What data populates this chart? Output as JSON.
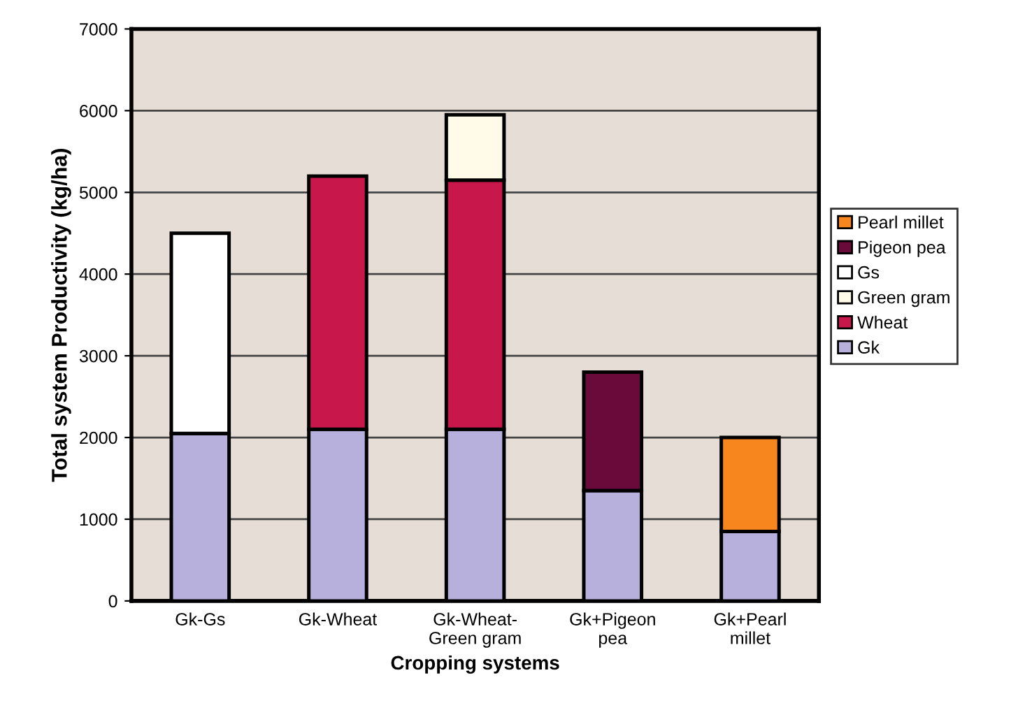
{
  "chart_data": {
    "type": "bar",
    "stacked": true,
    "xlabel": "Cropping systems",
    "ylabel": "Total system Productivity (kg/ha)",
    "categories": [
      "Gk-Gs",
      "Gk-Wheat",
      "Gk-Wheat-\nGreen gram",
      "Gk+Pigeon\npea",
      "Gk+Pearl\nmillet"
    ],
    "series": [
      {
        "name": "Gk",
        "color": "#b8b0dc",
        "values": [
          2050,
          2100,
          2100,
          1350,
          850
        ]
      },
      {
        "name": "Wheat",
        "color": "#c8174a",
        "values": [
          null,
          3100,
          3050,
          null,
          null
        ]
      },
      {
        "name": "Green gram",
        "color": "#fffbe8",
        "values": [
          null,
          null,
          800,
          null,
          null
        ]
      },
      {
        "name": "Gs",
        "color": "#ffffff",
        "values": [
          2450,
          null,
          null,
          null,
          null
        ]
      },
      {
        "name": "Pigeon pea",
        "color": "#6a0a3a",
        "values": [
          null,
          null,
          null,
          1450,
          null
        ]
      },
      {
        "name": "Pearl millet",
        "color": "#f7861e",
        "values": [
          null,
          null,
          null,
          null,
          1150
        ]
      }
    ],
    "ylim": [
      0,
      7000
    ],
    "yticks": [
      0,
      1000,
      2000,
      3000,
      4000,
      5000,
      6000,
      7000
    ],
    "grid": "y",
    "legend": "right"
  }
}
